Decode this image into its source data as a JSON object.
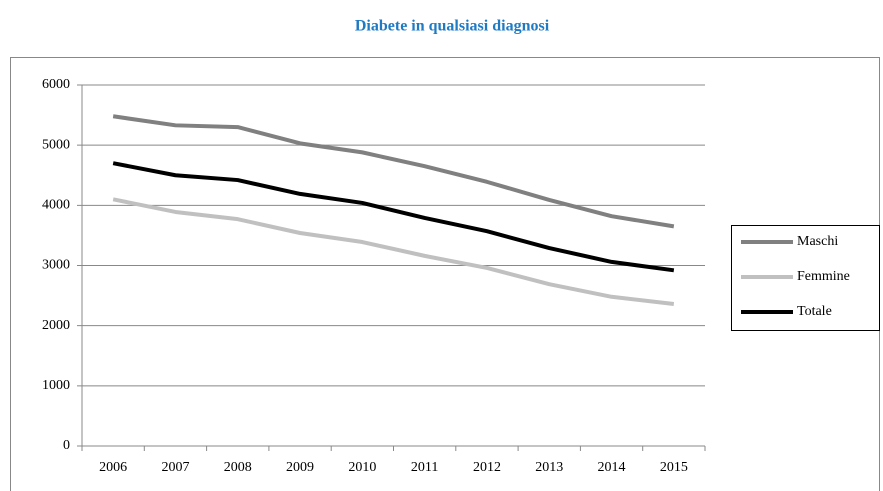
{
  "chart_data": {
    "type": "line",
    "title": "Diabete in qualsiasi diagnosi",
    "categories": [
      "2006",
      "2007",
      "2008",
      "2009",
      "2010",
      "2011",
      "2012",
      "2013",
      "2014",
      "2015"
    ],
    "series": [
      {
        "name": "Maschi",
        "color": "#808080",
        "values": [
          5480,
          5330,
          5300,
          5030,
          4880,
          4650,
          4390,
          4090,
          3820,
          3650
        ]
      },
      {
        "name": "Femmine",
        "color": "#c0c0c0",
        "values": [
          4100,
          3890,
          3770,
          3540,
          3390,
          3160,
          2960,
          2690,
          2480,
          2360
        ]
      },
      {
        "name": "Totale",
        "color": "#000000",
        "values": [
          4700,
          4500,
          4420,
          4190,
          4040,
          3790,
          3570,
          3290,
          3060,
          2920
        ]
      }
    ],
    "ylim": [
      0,
      6000
    ],
    "yticks": [
      0,
      1000,
      2000,
      3000,
      4000,
      5000,
      6000
    ],
    "grid": true,
    "legend": "right"
  }
}
